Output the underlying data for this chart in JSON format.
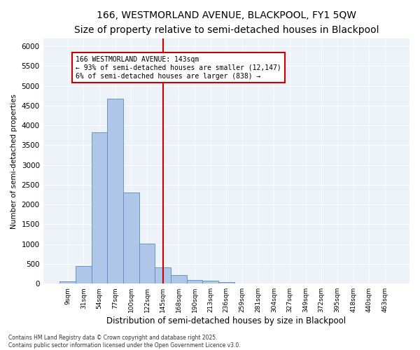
{
  "title1": "166, WESTMORLAND AVENUE, BLACKPOOL, FY1 5QW",
  "title2": "Size of property relative to semi-detached houses in Blackpool",
  "xlabel": "Distribution of semi-detached houses by size in Blackpool",
  "ylabel": "Number of semi-detached properties",
  "bar_labels": [
    "9sqm",
    "31sqm",
    "54sqm",
    "77sqm",
    "100sqm",
    "122sqm",
    "145sqm",
    "168sqm",
    "190sqm",
    "213sqm",
    "236sqm",
    "259sqm",
    "281sqm",
    "304sqm",
    "327sqm",
    "349sqm",
    "372sqm",
    "395sqm",
    "418sqm",
    "440sqm",
    "463sqm"
  ],
  "bar_values": [
    50,
    440,
    3820,
    4680,
    2300,
    1010,
    410,
    210,
    90,
    70,
    40,
    0,
    0,
    0,
    0,
    0,
    0,
    0,
    0,
    0,
    0
  ],
  "bar_color": "#aec6e8",
  "bar_edge_color": "#5b8db8",
  "vline_x_index": 6,
  "vline_color": "#cc0000",
  "annotation_text": "166 WESTMORLAND AVENUE: 143sqm\n← 93% of semi-detached houses are smaller (12,147)\n6% of semi-detached houses are larger (838) →",
  "ylim": [
    0,
    6200
  ],
  "yticks": [
    0,
    500,
    1000,
    1500,
    2000,
    2500,
    3000,
    3500,
    4000,
    4500,
    5000,
    5500,
    6000
  ],
  "background_color": "#edf2f8",
  "footnote": "Contains HM Land Registry data © Crown copyright and database right 2025.\nContains public sector information licensed under the Open Government Licence v3.0.",
  "title_fontsize": 10,
  "subtitle_fontsize": 9,
  "xlabel_fontsize": 8.5,
  "ylabel_fontsize": 7.5,
  "figsize": [
    6.0,
    5.0
  ],
  "dpi": 100
}
